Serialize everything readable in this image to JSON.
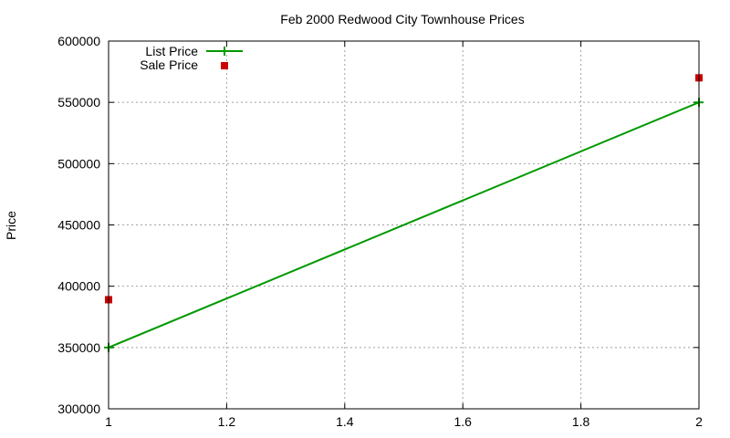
{
  "chart_data": {
    "type": "line",
    "title": "Feb 2000 Redwood City Townhouse Prices",
    "xlabel": "",
    "ylabel": "Price",
    "xlim": [
      1,
      2
    ],
    "ylim": [
      300000,
      600000
    ],
    "x_ticks": [
      "1",
      "1.2",
      "1.4",
      "1.6",
      "1.8",
      "2"
    ],
    "y_ticks": [
      "300000",
      "350000",
      "400000",
      "450000",
      "500000",
      "550000",
      "600000"
    ],
    "grid": true,
    "legend_position": "top-left",
    "series": [
      {
        "name": "List Price",
        "style": "linespoints",
        "color": "#009900",
        "x": [
          1,
          2
        ],
        "values": [
          350000,
          550000
        ]
      },
      {
        "name": "Sale Price",
        "style": "points",
        "color": "#cc0000",
        "x": [
          1,
          2
        ],
        "values": [
          389000,
          570000
        ]
      }
    ]
  }
}
